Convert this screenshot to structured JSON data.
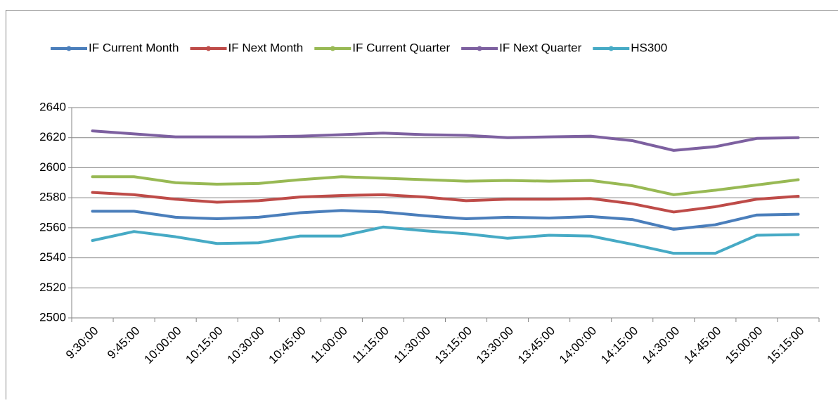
{
  "chart_data": {
    "type": "line",
    "categories": [
      "9:30:00",
      "9:45:00",
      "10:00:00",
      "10:15:00",
      "10:30:00",
      "10:45:00",
      "11:00:00",
      "11:15:00",
      "11:30:00",
      "13:15:00",
      "13:30:00",
      "13:45:00",
      "14:00:00",
      "14:15:00",
      "14:30:00",
      "14:45:00",
      "15:00:00",
      "15:15:00"
    ],
    "series": [
      {
        "name": "IF Current Month",
        "color": "#4a7ebb",
        "values": [
          2571,
          2571,
          2567,
          2566,
          2567,
          2570,
          2571.5,
          2570.5,
          2568,
          2566,
          2567,
          2566.5,
          2567.5,
          2565.5,
          2559,
          2562,
          2568.5,
          2569
        ]
      },
      {
        "name": "IF Next Month",
        "color": "#be4b48",
        "values": [
          2583.5,
          2582,
          2579,
          2577,
          2578,
          2580.5,
          2581.5,
          2582,
          2580.5,
          2578,
          2579,
          2579,
          2579.5,
          2576,
          2570.5,
          2574,
          2579,
          2581
        ]
      },
      {
        "name": "IF Current Quarter",
        "color": "#98b954",
        "values": [
          2594,
          2594,
          2590,
          2589,
          2589.5,
          2592,
          2594,
          2593,
          2592,
          2591,
          2591.5,
          2591,
          2591.5,
          2588,
          2582,
          2585,
          2588.5,
          2592
        ]
      },
      {
        "name": "IF Next Quarter",
        "color": "#7d60a0",
        "values": [
          2624.5,
          2622.5,
          2620.5,
          2620.5,
          2620.5,
          2621,
          2622,
          2623,
          2622,
          2621.5,
          2620,
          2620.5,
          2621,
          2618,
          2611.5,
          2614,
          2619.5,
          2620
        ]
      },
      {
        "name": "HS300",
        "color": "#46aac5",
        "values": [
          2551.5,
          2557.5,
          2554,
          2549.5,
          2550,
          2554.5,
          2554.5,
          2560.5,
          2558,
          2556,
          2553,
          2555,
          2554.5,
          2549,
          2543,
          2543,
          2555,
          2555.5
        ]
      }
    ],
    "ylim": [
      2500,
      2640
    ],
    "yticks": [
      2500,
      2520,
      2540,
      2560,
      2580,
      2600,
      2620,
      2640
    ],
    "grid": true,
    "legend": "top"
  }
}
